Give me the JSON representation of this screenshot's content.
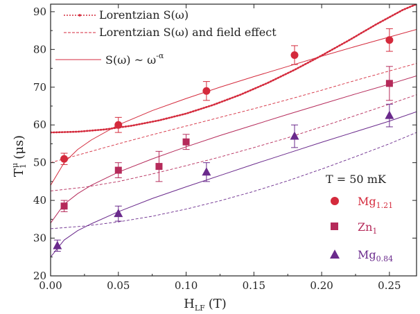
{
  "chart_data": {
    "type": "scatter",
    "xlabel": "H",
    "xlabel_sub": "LF",
    "xlabel_unit": "(T)",
    "ylabel": "T",
    "ylabel_sup": "μ",
    "ylabel_sub": "1",
    "ylabel_unit": "(μs)",
    "xlim": [
      0,
      0.27
    ],
    "ylim": [
      20,
      92
    ],
    "x_ticks": [
      0.0,
      0.05,
      0.1,
      0.15,
      0.2,
      0.25
    ],
    "x_tick_labels": [
      "0.00",
      "0.05",
      "0.10",
      "0.15",
      "0.20",
      "0.25"
    ],
    "y_ticks": [
      20,
      30,
      40,
      50,
      60,
      70,
      80,
      90
    ],
    "y_tick_labels": [
      "20",
      "30",
      "40",
      "50",
      "60",
      "70",
      "80",
      "90"
    ],
    "grid": false,
    "legend_lines": {
      "position": "top-left",
      "entries": [
        {
          "label": "Lorentzian S(ω)",
          "style": "dotted"
        },
        {
          "label": "Lorentzian S(ω) and field effect",
          "style": "dashed"
        },
        {
          "label": "S(ω) ~ ω",
          "label_sup": "-α",
          "style": "solid"
        }
      ]
    },
    "legend_markers": {
      "position": "bottom-right",
      "title": "T = 50 mK",
      "entries": [
        {
          "name": "Mg",
          "sub": "1.21",
          "marker": "circle",
          "color": "#d42a3c"
        },
        {
          "name": "Zn",
          "sub": "1",
          "marker": "square",
          "color": "#b52a5a"
        },
        {
          "name": "Mg",
          "sub": "0.84",
          "marker": "triangle",
          "color": "#6a2a8c"
        }
      ]
    },
    "series": [
      {
        "key": "mg121",
        "marker": "circle",
        "color": "#d42a3c",
        "points": [
          {
            "x": 0.01,
            "y": 51.0,
            "err": 1.5
          },
          {
            "x": 0.05,
            "y": 60.0,
            "err": 2.0
          },
          {
            "x": 0.115,
            "y": 69.0,
            "err": 2.5
          },
          {
            "x": 0.18,
            "y": 78.5,
            "err": 2.5
          },
          {
            "x": 0.25,
            "y": 82.5,
            "err": 3.0
          }
        ]
      },
      {
        "key": "zn1",
        "marker": "square",
        "color": "#b52a5a",
        "points": [
          {
            "x": 0.01,
            "y": 38.5,
            "err": 1.5
          },
          {
            "x": 0.05,
            "y": 48.0,
            "err": 2.0
          },
          {
            "x": 0.08,
            "y": 49.0,
            "err": 4.0
          },
          {
            "x": 0.1,
            "y": 55.5,
            "err": 2.0
          },
          {
            "x": 0.25,
            "y": 71.0,
            "err": 4.5
          }
        ]
      },
      {
        "key": "mg084",
        "marker": "triangle",
        "color": "#6a2a8c",
        "points": [
          {
            "x": 0.005,
            "y": 28.0,
            "err": 1.5
          },
          {
            "x": 0.05,
            "y": 36.5,
            "err": 2.0
          },
          {
            "x": 0.115,
            "y": 47.5,
            "err": 2.5
          },
          {
            "x": 0.18,
            "y": 57.0,
            "err": 3.0
          },
          {
            "x": 0.25,
            "y": 62.5,
            "err": 3.0
          }
        ]
      }
    ],
    "fit_curves": [
      {
        "key": "lorentz-dotted",
        "style": "dotted",
        "color": "#d42a3c",
        "x": [
          0.0,
          0.02,
          0.04,
          0.06,
          0.08,
          0.1,
          0.12,
          0.14,
          0.16,
          0.18,
          0.2,
          0.22,
          0.24,
          0.26,
          0.27
        ],
        "y": [
          58.0,
          58.2,
          58.8,
          59.8,
          61.2,
          63.0,
          65.3,
          68.0,
          71.1,
          74.6,
          78.4,
          82.4,
          86.6,
          90.5,
          92.0
        ]
      },
      {
        "key": "mg121-solid",
        "style": "solid",
        "color": "#d42a3c",
        "x": [
          0.0,
          0.01,
          0.02,
          0.03,
          0.05,
          0.075,
          0.1,
          0.125,
          0.15,
          0.175,
          0.2,
          0.225,
          0.25,
          0.27
        ],
        "y": [
          44.0,
          50.0,
          53.5,
          56.0,
          60.0,
          63.8,
          67.0,
          70.0,
          72.8,
          75.5,
          78.2,
          80.8,
          83.3,
          85.3
        ]
      },
      {
        "key": "zn1-solid",
        "style": "solid",
        "color": "#b52a5a",
        "x": [
          0.0,
          0.01,
          0.02,
          0.03,
          0.05,
          0.075,
          0.1,
          0.125,
          0.15,
          0.175,
          0.2,
          0.225,
          0.25,
          0.27
        ],
        "y": [
          34.0,
          39.0,
          41.8,
          44.0,
          47.5,
          51.0,
          54.2,
          57.2,
          60.0,
          62.8,
          65.5,
          68.2,
          70.8,
          73.0
        ]
      },
      {
        "key": "mg084-solid",
        "style": "solid",
        "color": "#6a2a8c",
        "x": [
          0.0,
          0.01,
          0.02,
          0.03,
          0.05,
          0.075,
          0.1,
          0.125,
          0.15,
          0.175,
          0.2,
          0.225,
          0.25,
          0.27
        ],
        "y": [
          25.0,
          29.5,
          32.0,
          33.8,
          37.0,
          40.5,
          43.6,
          46.6,
          49.6,
          52.5,
          55.4,
          58.2,
          61.0,
          63.5
        ]
      },
      {
        "key": "mg121-dashed",
        "style": "dashed",
        "color": "#d42a3c",
        "x": [
          0.0,
          0.025,
          0.05,
          0.075,
          0.1,
          0.125,
          0.15,
          0.175,
          0.2,
          0.225,
          0.25,
          0.27
        ],
        "y": [
          50.0,
          52.5,
          55.0,
          57.4,
          59.7,
          62.0,
          64.3,
          66.7,
          69.2,
          71.8,
          74.3,
          76.3
        ]
      },
      {
        "key": "zn1-dashed",
        "style": "dashed",
        "color": "#b52a5a",
        "x": [
          0.0,
          0.025,
          0.05,
          0.075,
          0.1,
          0.125,
          0.15,
          0.175,
          0.2,
          0.225,
          0.25,
          0.27
        ],
        "y": [
          42.5,
          43.5,
          45.0,
          47.0,
          49.2,
          51.5,
          54.0,
          56.6,
          59.5,
          62.5,
          65.5,
          68.0
        ]
      },
      {
        "key": "mg084-dashed",
        "style": "dashed",
        "color": "#6a2a8c",
        "x": [
          0.0,
          0.025,
          0.05,
          0.075,
          0.1,
          0.125,
          0.15,
          0.175,
          0.2,
          0.225,
          0.25,
          0.27
        ],
        "y": [
          32.5,
          33.2,
          34.3,
          35.8,
          37.7,
          39.9,
          42.4,
          45.2,
          48.3,
          51.6,
          55.0,
          58.0
        ]
      }
    ]
  }
}
